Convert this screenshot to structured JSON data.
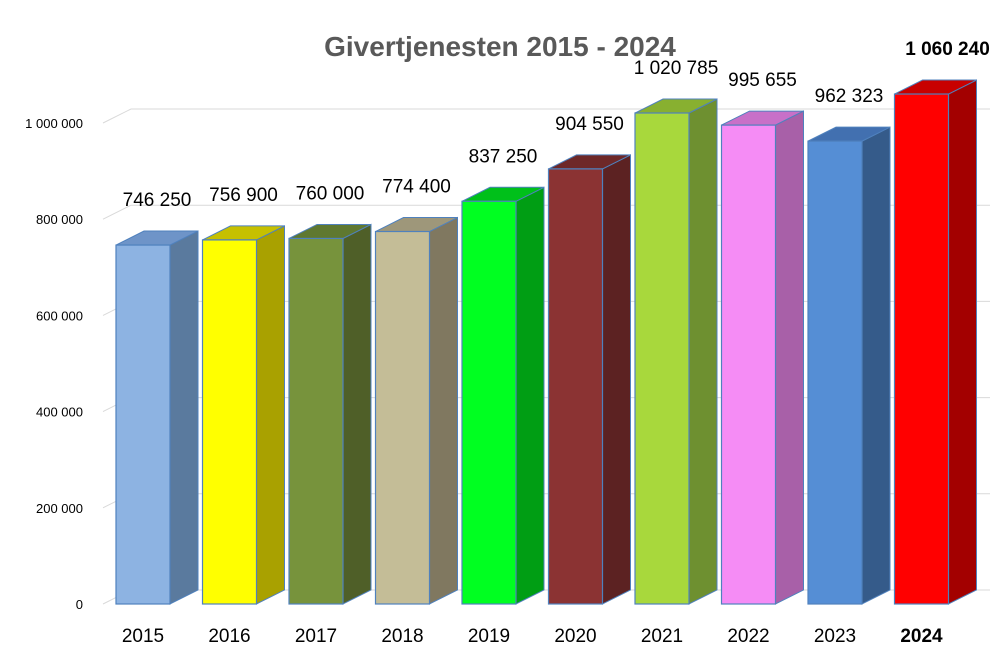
{
  "chart_data": {
    "type": "bar",
    "title": "Givertjenesten 2015 - 2024",
    "categories": [
      "2015",
      "2016",
      "2017",
      "2018",
      "2019",
      "2020",
      "2021",
      "2022",
      "2023",
      "2024"
    ],
    "values": [
      746250,
      756900,
      760000,
      774400,
      837250,
      904550,
      1020785,
      995655,
      962323,
      1060240
    ],
    "value_labels": [
      "746 250",
      "756 900",
      "760 000",
      "774 400",
      "837 250",
      "904 550",
      "1 020 785",
      "995 655",
      "962 323",
      "1 060 240"
    ],
    "ylim": [
      0,
      1000000
    ],
    "yticks": [
      0,
      200000,
      400000,
      600000,
      800000,
      1000000
    ],
    "ytick_labels": [
      "0",
      "200 000",
      "400 000",
      "600 000",
      "800 000",
      "1 000 000"
    ],
    "grid": true,
    "style": "3d-column",
    "highlight_index": 9,
    "colors": [
      "#8DB3E2",
      "#FFFF00",
      "#77933C",
      "#C4BD97",
      "#00FF21",
      "#8B3333",
      "#A8D83C",
      "#F58CF5",
      "#558ED5",
      "#FF0000"
    ],
    "side_colors": [
      "#5A7A9E",
      "#A9A100",
      "#4F5F28",
      "#807860",
      "#009E14",
      "#5C2222",
      "#6E9030",
      "#A860A8",
      "#355B8A",
      "#A30000"
    ],
    "top_colors": [
      "#6E94C8",
      "#C6C000",
      "#5F7830",
      "#9E977A",
      "#00C01A",
      "#6E2828",
      "#88B030",
      "#C870C8",
      "#4270B0",
      "#C80000"
    ]
  }
}
